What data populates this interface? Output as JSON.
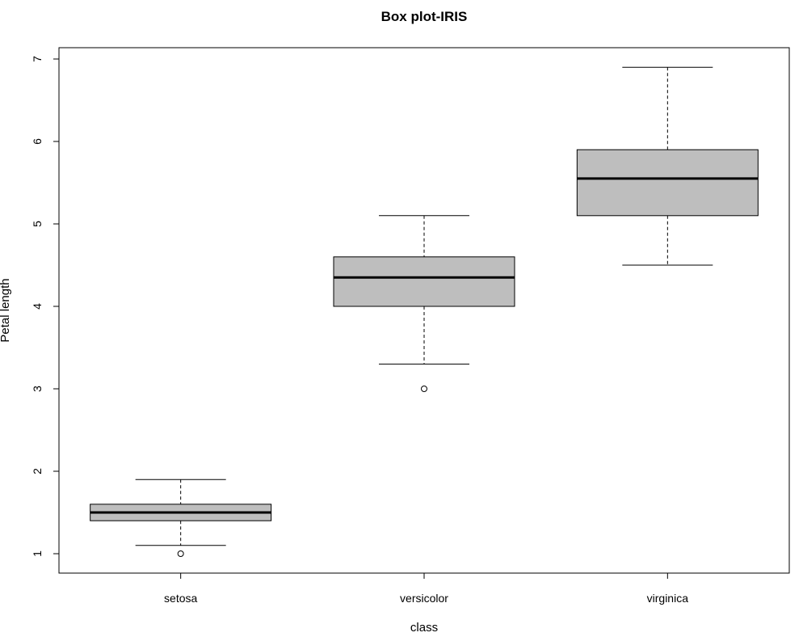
{
  "chart_data": {
    "type": "boxplot",
    "title": "Box plot-IRIS",
    "xlabel": "class",
    "ylabel": "Petal length",
    "ylim": [
      0.77,
      7.13
    ],
    "yticks": [
      1,
      2,
      3,
      4,
      5,
      6,
      7
    ],
    "ytick_labels": [
      "1",
      "2",
      "3",
      "4",
      "5",
      "6",
      "7"
    ],
    "categories": [
      "setosa",
      "versicolor",
      "virginica"
    ],
    "box_fill": "#bebebe",
    "grid": false,
    "boxes": [
      {
        "category": "setosa",
        "whisker_low": 1.1,
        "q1": 1.4,
        "median": 1.5,
        "q3": 1.6,
        "whisker_high": 1.9,
        "outliers": [
          1.0
        ]
      },
      {
        "category": "versicolor",
        "whisker_low": 3.3,
        "q1": 4.0,
        "median": 4.35,
        "q3": 4.6,
        "whisker_high": 5.1,
        "outliers": [
          3.0
        ]
      },
      {
        "category": "virginica",
        "whisker_low": 4.5,
        "q1": 5.1,
        "median": 5.55,
        "q3": 5.9,
        "whisker_high": 6.9,
        "outliers": []
      }
    ]
  }
}
